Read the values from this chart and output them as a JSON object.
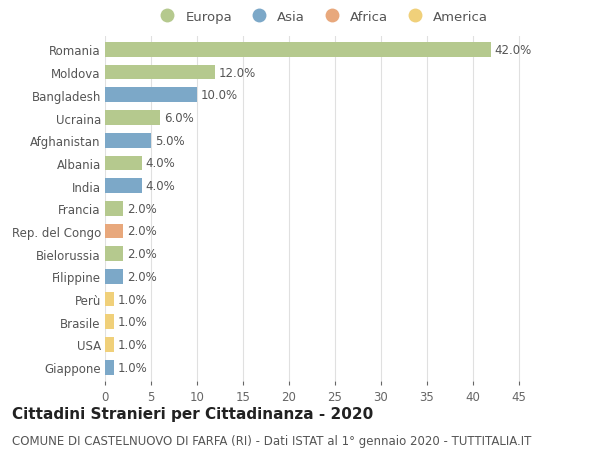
{
  "countries": [
    "Romania",
    "Moldova",
    "Bangladesh",
    "Ucraina",
    "Afghanistan",
    "Albania",
    "India",
    "Francia",
    "Rep. del Congo",
    "Bielorussia",
    "Filippine",
    "Perù",
    "Brasile",
    "USA",
    "Giappone"
  ],
  "values": [
    42.0,
    12.0,
    10.0,
    6.0,
    5.0,
    4.0,
    4.0,
    2.0,
    2.0,
    2.0,
    2.0,
    1.0,
    1.0,
    1.0,
    1.0
  ],
  "continents": [
    "Europa",
    "Europa",
    "Asia",
    "Europa",
    "Asia",
    "Europa",
    "Asia",
    "Europa",
    "Africa",
    "Europa",
    "Asia",
    "America",
    "America",
    "America",
    "Asia"
  ],
  "continent_colors": {
    "Europa": "#b5c98e",
    "Asia": "#7ca8c8",
    "Africa": "#e8a87c",
    "America": "#f0d07a"
  },
  "legend_order": [
    "Europa",
    "Asia",
    "Africa",
    "America"
  ],
  "title": "Cittadini Stranieri per Cittadinanza - 2020",
  "subtitle": "COMUNE DI CASTELNUOVO DI FARFA (RI) - Dati ISTAT al 1° gennaio 2020 - TUTTITALIA.IT",
  "xlim": [
    0,
    47
  ],
  "xticks": [
    0,
    5,
    10,
    15,
    20,
    25,
    30,
    35,
    40,
    45
  ],
  "background_color": "#ffffff",
  "grid_color": "#e0e0e0",
  "bar_height": 0.65,
  "title_fontsize": 11,
  "subtitle_fontsize": 8.5,
  "tick_fontsize": 8.5,
  "label_fontsize": 8.5,
  "legend_fontsize": 9.5
}
